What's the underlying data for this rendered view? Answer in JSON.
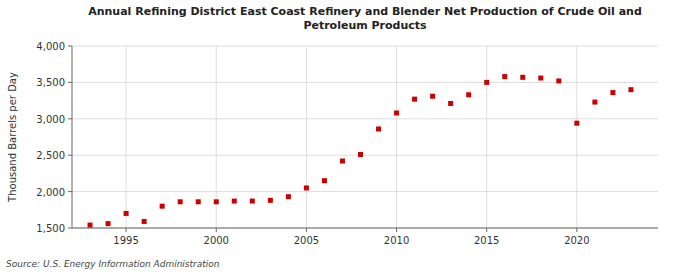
{
  "chart_data": {
    "type": "scatter",
    "title": "Annual Refining District East Coast Refinery and Blender Net Production of Crude Oil and\nPetroleum Products",
    "ylabel": "Thousand Barrels per Day",
    "source": "Source: U.S. Energy Information Administration",
    "x": [
      1993,
      1994,
      1995,
      1996,
      1997,
      1998,
      1999,
      2000,
      2001,
      2002,
      2003,
      2004,
      2005,
      2006,
      2007,
      2008,
      2009,
      2010,
      2011,
      2012,
      2013,
      2014,
      2015,
      2016,
      2017,
      2018,
      2019,
      2020,
      2021,
      2022,
      2023
    ],
    "values": [
      1540,
      1560,
      1700,
      1590,
      1800,
      1860,
      1860,
      1860,
      1870,
      1870,
      1880,
      1930,
      2050,
      2150,
      2420,
      2510,
      2860,
      3080,
      3270,
      3310,
      3210,
      3330,
      3500,
      3580,
      3570,
      3560,
      3520,
      2940,
      3230,
      3360,
      3400
    ],
    "color": "#cc0000",
    "marker": "square",
    "xlim": [
      1992.0,
      2024.5
    ],
    "ylim": [
      1500,
      4000
    ],
    "xticks": [
      1995,
      2000,
      2005,
      2010,
      2015,
      2020
    ],
    "yticks": [
      {
        "value": 1500,
        "label": "1,500"
      },
      {
        "value": 2000,
        "label": "2,000"
      },
      {
        "value": 2500,
        "label": "2,500"
      },
      {
        "value": 3000,
        "label": "3,000"
      },
      {
        "value": 3500,
        "label": "3,500"
      },
      {
        "value": 4000,
        "label": "4,000"
      }
    ],
    "grid": true
  }
}
